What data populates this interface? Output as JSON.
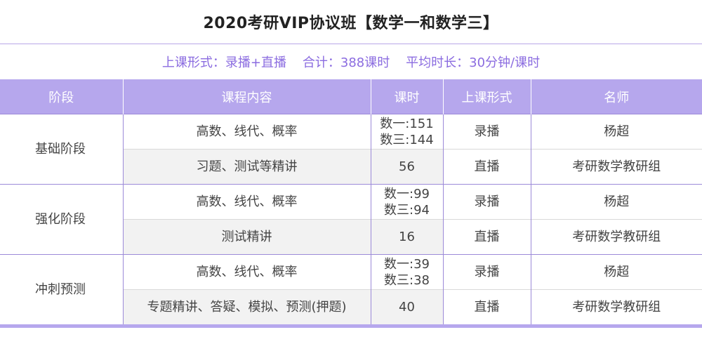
{
  "title": "2020考研VIP协议班【数学一和数学三】",
  "info": {
    "text": "上课形式：录播+直播    合计：388课时    平均时长：30分钟/课时"
  },
  "table": {
    "headers": [
      "阶段",
      "课程内容",
      "课时",
      "上课形式",
      "名师"
    ],
    "groups": [
      {
        "stage": "基础阶段",
        "rows": [
          {
            "content": "高数、线代、概率",
            "hours": [
              "数一:151",
              "数三:144"
            ],
            "form": "录播",
            "teacher": "杨超"
          },
          {
            "content": "习题、测试等精讲",
            "hours": [
              "56"
            ],
            "form": "直播",
            "teacher": "考研数学教研组"
          }
        ]
      },
      {
        "stage": "强化阶段",
        "rows": [
          {
            "content": "高数、线代、概率",
            "hours": [
              "数一:99",
              "数三:94"
            ],
            "form": "录播",
            "teacher": "杨超"
          },
          {
            "content": "测试精讲",
            "hours": [
              "16"
            ],
            "form": "直播",
            "teacher": "考研数学教研组"
          }
        ]
      },
      {
        "stage": "冲刺预测",
        "rows": [
          {
            "content": "高数、线代、概率",
            "hours": [
              "数一:39",
              "数三:38"
            ],
            "form": "录播",
            "teacher": "杨超"
          },
          {
            "content": "专题精讲、答疑、模拟、预测(押题)",
            "hours": [
              "40"
            ],
            "form": "直播",
            "teacher": "考研数学教研组"
          }
        ]
      }
    ]
  },
  "colors": {
    "accent": "#b6a7ed",
    "info_text": "#8b6ce0",
    "row_alt": "#f2f2f2"
  }
}
